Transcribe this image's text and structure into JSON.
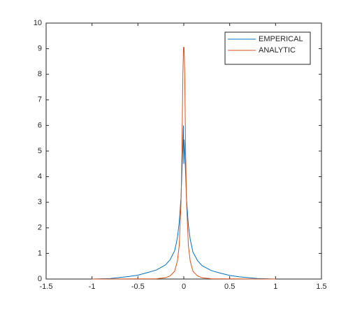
{
  "chart_data": {
    "type": "line",
    "xlim": [
      -1.5,
      1.5
    ],
    "ylim": [
      0,
      10
    ],
    "xticks": [
      -1.5,
      -1,
      -0.5,
      0,
      0.5,
      1,
      1.5
    ],
    "yticks": [
      0,
      1,
      2,
      3,
      4,
      5,
      6,
      7,
      8,
      9,
      10
    ],
    "legend": "northeast",
    "box": true,
    "series": [
      {
        "name": "EMPERICAL",
        "color": "#0072BD",
        "x": [
          -1,
          -0.8,
          -0.6,
          -0.5,
          -0.4,
          -0.3,
          -0.2,
          -0.15,
          -0.1,
          -0.07,
          -0.05,
          -0.03,
          -0.02,
          -0.01,
          -0.004,
          0,
          0.004,
          0.01,
          0.02,
          0.03,
          0.05,
          0.07,
          0.1,
          0.15,
          0.2,
          0.3,
          0.4,
          0.5,
          0.6,
          0.8,
          1
        ],
        "values": [
          0,
          0.02,
          0.1,
          0.15,
          0.25,
          0.35,
          0.55,
          0.75,
          1.1,
          1.6,
          2.2,
          3.2,
          4.2,
          5.2,
          6.0,
          4.5,
          5.45,
          5.0,
          4.1,
          3.1,
          2.1,
          1.55,
          1.05,
          0.72,
          0.52,
          0.33,
          0.23,
          0.14,
          0.09,
          0.02,
          0
        ]
      },
      {
        "name": "ANALYTIC",
        "color": "#D95319",
        "x": [
          -1,
          -0.3,
          -0.2,
          -0.15,
          -0.1,
          -0.07,
          -0.05,
          -0.03,
          -0.02,
          -0.01,
          -0.003,
          0,
          0.003,
          0.01,
          0.02,
          0.03,
          0.05,
          0.07,
          0.1,
          0.15,
          0.2,
          0.3,
          1
        ],
        "values": [
          0,
          0.01,
          0.05,
          0.12,
          0.3,
          0.7,
          1.3,
          3,
          5,
          8,
          9.05,
          9.05,
          9.05,
          8,
          5,
          3,
          1.3,
          0.7,
          0.3,
          0.12,
          0.05,
          0.01,
          0
        ]
      }
    ]
  }
}
